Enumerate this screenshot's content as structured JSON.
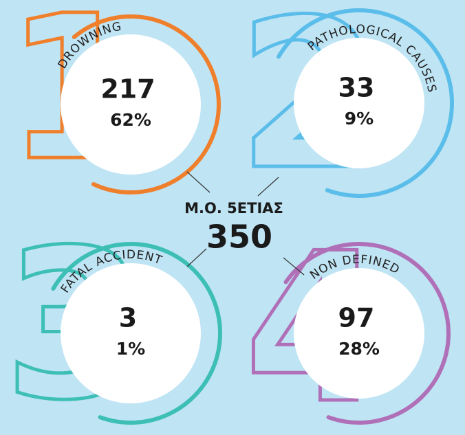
{
  "center": {
    "label": "Μ.Ο. 5ΕΤΙΑΣ",
    "total": "350"
  },
  "items": [
    {
      "rank": "1",
      "label": "DROWNING",
      "count": "217",
      "percent": "62%",
      "color": "#f07f2c"
    },
    {
      "rank": "2",
      "label": "PATHOLOGICAL CAUSES",
      "count": "33",
      "percent": "9%",
      "color": "#5bbde9"
    },
    {
      "rank": "3",
      "label": "FATAL ACCIDENT",
      "count": "3",
      "percent": "1%",
      "color": "#3dbfb6"
    },
    {
      "rank": "4",
      "label": "NON DEFINED",
      "count": "97",
      "percent": "28%",
      "color": "#b070b8"
    }
  ]
}
